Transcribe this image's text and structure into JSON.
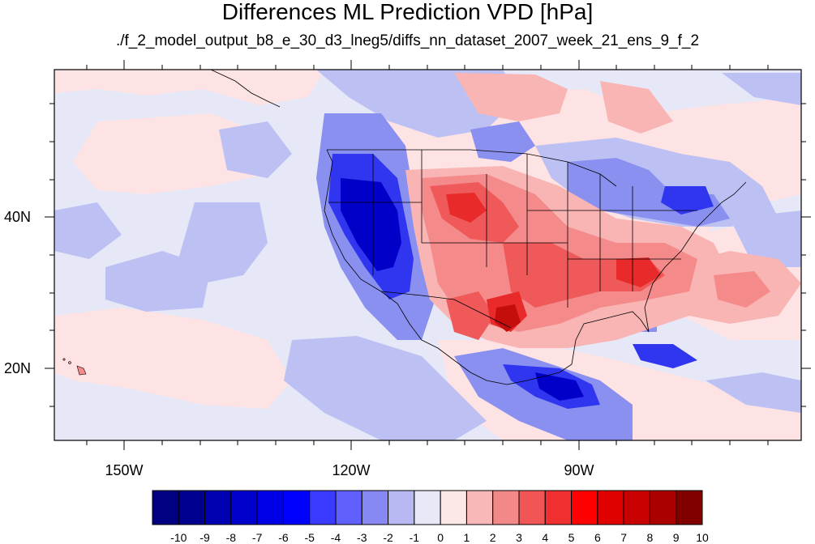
{
  "title": "Differences ML Prediction VPD [hPa]",
  "subtitle": "./f_2_model_output_b8_e_30_d3_lneg5/diffs_nn_dataset_2007_week_21_ens_9_f_2",
  "axes": {
    "lat_labels": [
      "40N",
      "20N"
    ],
    "lon_labels": [
      "150W",
      "120W",
      "90W"
    ]
  },
  "colorbar": {
    "labels": [
      "-10",
      "-9",
      "-8",
      "-7",
      "-6",
      "-5",
      "-4",
      "-3",
      "-2",
      "-1",
      "0",
      "1",
      "2",
      "3",
      "4",
      "5",
      "6",
      "7",
      "8",
      "9",
      "10"
    ],
    "colors": [
      "#000080",
      "#00008f",
      "#0000b0",
      "#0000cc",
      "#0000e6",
      "#0000ff",
      "#3b3bff",
      "#6060ff",
      "#8888f2",
      "#b8b8f2",
      "#e8e8f8",
      "#fde8e8",
      "#f8b8b8",
      "#f28888",
      "#f25555",
      "#f03030",
      "#ff0000",
      "#e00000",
      "#c80000",
      "#aa0000",
      "#800000"
    ]
  },
  "field_colors": {
    "background": "#e6e8f7",
    "light_red": "#fde3e3",
    "red_1": "#f9b4b4",
    "red_2": "#f48a8a",
    "red_3": "#ef5959",
    "red_4": "#e82a2a",
    "red_5": "#c40d0d",
    "light_blue": "#bcc0f2",
    "blue_2": "#8a90f0",
    "blue_3": "#5b62f0",
    "blue_4": "#2a2af0",
    "blue_5": "#0000c8"
  }
}
